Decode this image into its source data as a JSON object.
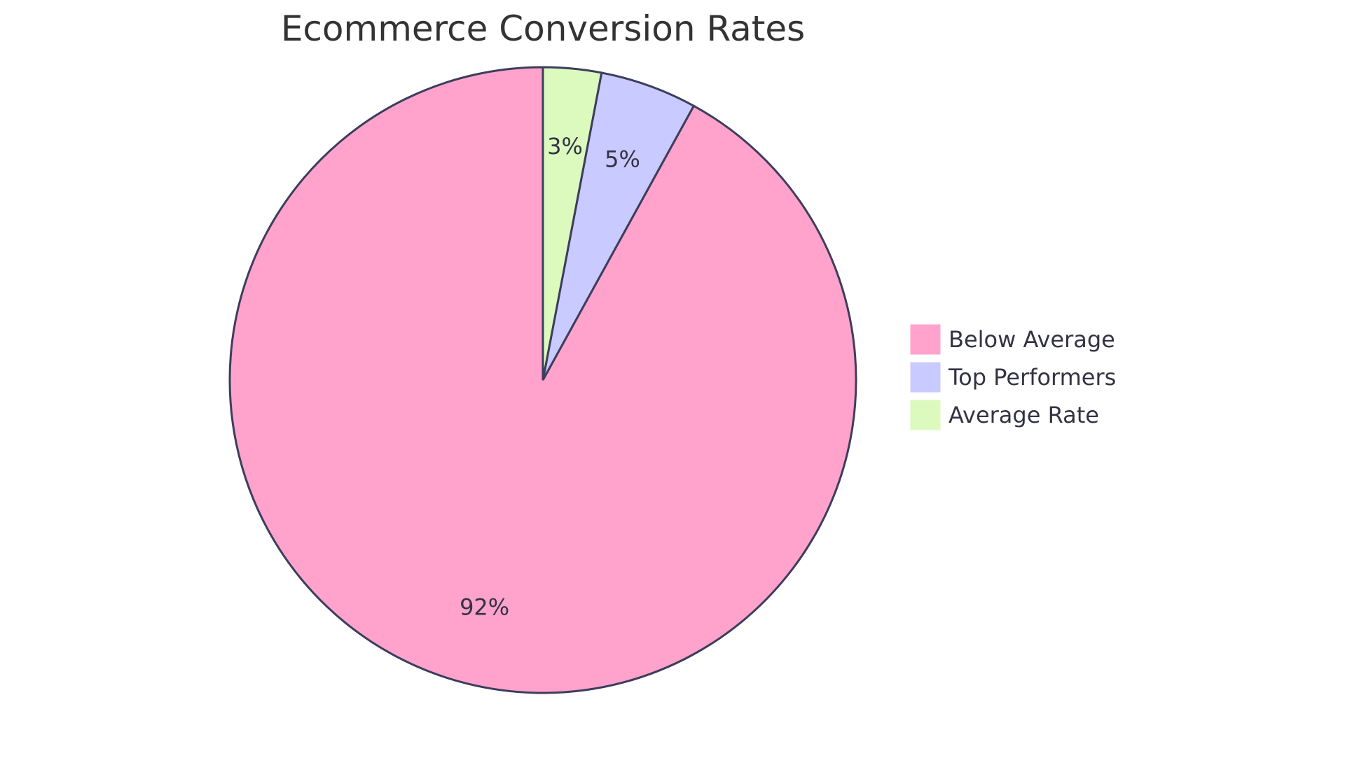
{
  "chart_data": {
    "type": "pie",
    "title": "Ecommerce Conversion Rates",
    "slices": [
      {
        "label": "Below Average",
        "value": 92,
        "display": "92%",
        "color": "#FFA3CC"
      },
      {
        "label": "Top Performers",
        "value": 5,
        "display": "5%",
        "color": "#C9CAFF"
      },
      {
        "label": "Average Rate",
        "value": 3,
        "display": "3%",
        "color": "#DCFABE"
      }
    ],
    "legend_position": "right",
    "stroke_color": "#3d3d5c"
  }
}
